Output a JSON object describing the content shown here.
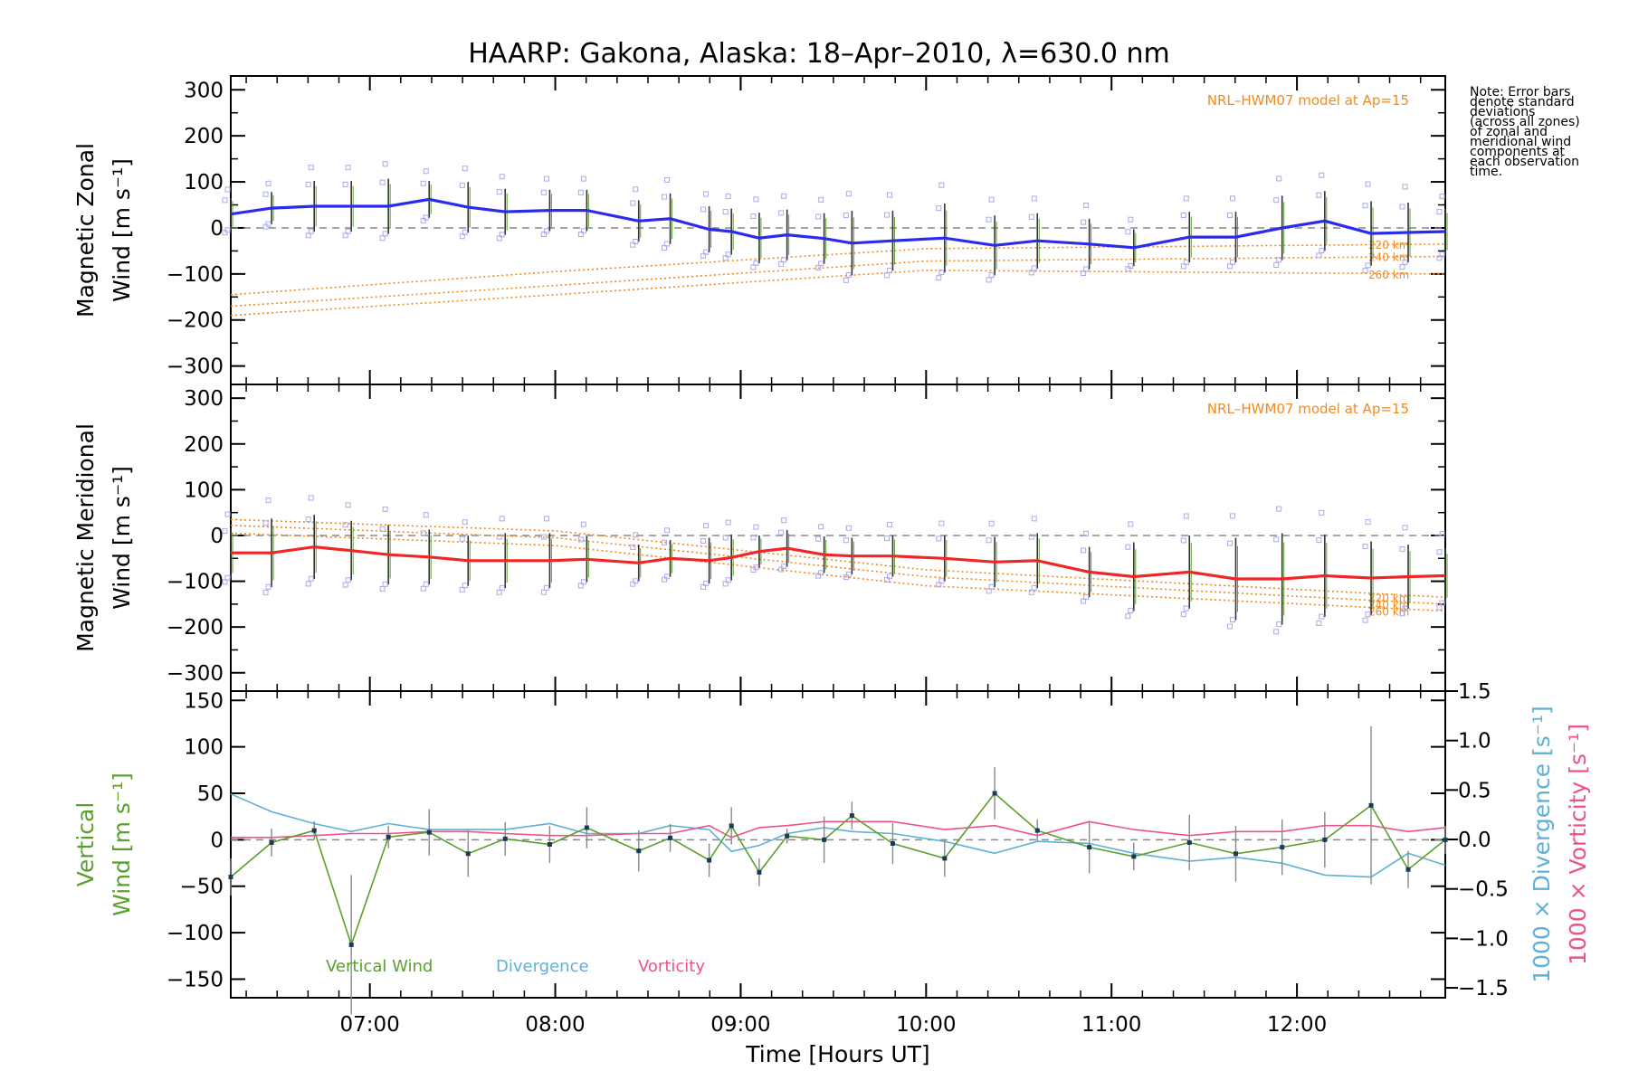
{
  "title": "HAARP: Gakona,  Alaska: 18–Apr–2010, λ=630.0 nm",
  "note": "Note: Error bars\ndenote standard\ndeviations\n(across all zones)\nof zonal and\nmeridional wind\ncomponents at\neach observation\ntime.",
  "colors": {
    "zonal": "#2b2bf0",
    "meridional": "#f02626",
    "vertical": "#5aa02c",
    "divergence": "#5fb0d6",
    "vorticity": "#f0508c",
    "model": "#f28a1e",
    "samples": "#a9aae8"
  },
  "chart_data": [
    {
      "type": "line",
      "panel": "zonal",
      "ylabel": [
        "Magnetic Zonal",
        "Wind [m s⁻¹]"
      ],
      "xlim": [
        6.25,
        12.8
      ],
      "ylim": [
        -340,
        330
      ],
      "yticks": [
        300,
        200,
        100,
        0,
        -100,
        -200,
        -300
      ],
      "annotation": "NRL–HWM07 model at Ap=15",
      "series": {
        "x": [
          6.25,
          6.47,
          6.7,
          6.9,
          7.1,
          7.32,
          7.53,
          7.73,
          7.97,
          8.17,
          8.45,
          8.62,
          8.83,
          8.95,
          9.1,
          9.25,
          9.45,
          9.6,
          9.82,
          10.1,
          10.37,
          10.6,
          10.88,
          11.12,
          11.42,
          11.67,
          11.92,
          12.15,
          12.4,
          12.6,
          12.8
        ],
        "y": [
          30,
          43,
          47,
          47,
          47,
          62,
          45,
          35,
          38,
          38,
          15,
          20,
          -3,
          -8,
          -22,
          -15,
          -23,
          -33,
          -28,
          -22,
          -38,
          -28,
          -35,
          -43,
          -20,
          -20,
          0,
          15,
          -12,
          -10,
          -8
        ],
        "err": [
          35,
          35,
          55,
          55,
          60,
          40,
          55,
          50,
          45,
          45,
          45,
          55,
          50,
          50,
          55,
          55,
          55,
          70,
          65,
          75,
          65,
          60,
          55,
          40,
          55,
          55,
          70,
          65,
          70,
          65,
          50
        ]
      },
      "model": [
        {
          "label": "220 km",
          "x": [
            6.25,
            8.0,
            10.0,
            12.8
          ],
          "y": [
            -145,
            -95,
            -45,
            -35
          ]
        },
        {
          "label": "240 km",
          "x": [
            6.25,
            8.0,
            10.0,
            12.8
          ],
          "y": [
            -170,
            -125,
            -72,
            -62
          ]
        },
        {
          "label": "260 km",
          "x": [
            6.25,
            8.0,
            10.0,
            12.8
          ],
          "y": [
            -190,
            -145,
            -92,
            -100
          ]
        }
      ]
    },
    {
      "type": "line",
      "panel": "meridional",
      "ylabel": [
        "Magnetic Meridional",
        "Wind [m s⁻¹]"
      ],
      "xlim": [
        6.25,
        12.8
      ],
      "ylim": [
        -340,
        330
      ],
      "yticks": [
        300,
        200,
        100,
        0,
        -100,
        -200,
        -300
      ],
      "annotation": "NRL–HWM07 model at Ap=15",
      "series": {
        "x": [
          6.25,
          6.47,
          6.7,
          6.9,
          7.1,
          7.32,
          7.53,
          7.73,
          7.97,
          8.17,
          8.45,
          8.62,
          8.83,
          8.95,
          9.1,
          9.25,
          9.45,
          9.6,
          9.82,
          10.1,
          10.37,
          10.6,
          10.88,
          11.12,
          11.42,
          11.67,
          11.92,
          12.15,
          12.4,
          12.6,
          12.8
        ],
        "y": [
          -38,
          -38,
          -25,
          -33,
          -42,
          -47,
          -55,
          -55,
          -55,
          -52,
          -60,
          -50,
          -55,
          -48,
          -35,
          -28,
          -42,
          -45,
          -45,
          -50,
          -58,
          -55,
          -80,
          -90,
          -80,
          -95,
          -95,
          -88,
          -93,
          -90,
          -88
        ],
        "err": [
          55,
          75,
          70,
          65,
          65,
          60,
          55,
          60,
          60,
          50,
          40,
          40,
          50,
          50,
          35,
          40,
          40,
          40,
          45,
          50,
          55,
          60,
          55,
          75,
          80,
          90,
          100,
          90,
          80,
          70,
          60
        ]
      },
      "model": [
        {
          "label": "220 km",
          "x": [
            6.25,
            8.0,
            10.0,
            12.8
          ],
          "y": [
            35,
            10,
            -75,
            -135
          ]
        },
        {
          "label": "240 km",
          "x": [
            6.25,
            8.0,
            10.0,
            12.8
          ],
          "y": [
            22,
            -5,
            -90,
            -150
          ]
        },
        {
          "label": "260 km",
          "x": [
            6.25,
            8.0,
            10.0,
            12.8
          ],
          "y": [
            5,
            -22,
            -110,
            -165
          ]
        }
      ]
    },
    {
      "type": "line",
      "panel": "vertical",
      "ylabel": [
        "Vertical",
        "Wind [m s⁻¹]"
      ],
      "y2label_divergence": "1000 × Divergence [s⁻¹]",
      "y2label_vorticity": "1000 × Vorticity [s⁻¹]",
      "xlabel": "Time [Hours UT]",
      "xlim": [
        6.25,
        12.8
      ],
      "xticks": [
        7,
        8,
        9,
        10,
        11,
        12
      ],
      "xticklabels": [
        "07:00",
        "08:00",
        "09:00",
        "10:00",
        "11:00",
        "12:00"
      ],
      "ylim": [
        -170,
        160
      ],
      "yticks": [
        150,
        100,
        50,
        0,
        -50,
        -100,
        -150
      ],
      "y2lim": [
        -1.6,
        1.5
      ],
      "y2ticks": [
        1.5,
        1.0,
        0.5,
        0.0,
        -0.5,
        -1.0,
        -1.5
      ],
      "y2ticklabels": [
        "1.5",
        "1.0",
        "0.5",
        "0.0",
        "−0.5",
        "−1.0",
        "−1.5"
      ],
      "legend": [
        "Vertical Wind",
        "Divergence",
        "Vorticity"
      ],
      "vertical": {
        "x": [
          6.25,
          6.47,
          6.7,
          6.9,
          7.1,
          7.32,
          7.53,
          7.73,
          7.97,
          8.17,
          8.45,
          8.62,
          8.83,
          8.95,
          9.1,
          9.25,
          9.45,
          9.6,
          9.82,
          10.1,
          10.37,
          10.6,
          10.88,
          11.12,
          11.42,
          11.67,
          11.92,
          12.15,
          12.4,
          12.6,
          12.8
        ],
        "y": [
          -40,
          -3,
          10,
          -113,
          3,
          8,
          -15,
          1,
          -5,
          13,
          -12,
          2,
          -22,
          15,
          -35,
          4,
          0,
          26,
          -4,
          -20,
          50,
          10,
          -8,
          -18,
          -3,
          -15,
          -8,
          0,
          37,
          -32,
          0
        ],
        "err": [
          20,
          15,
          10,
          75,
          12,
          25,
          25,
          18,
          20,
          22,
          22,
          15,
          18,
          20,
          15,
          8,
          25,
          15,
          22,
          20,
          28,
          12,
          28,
          15,
          30,
          30,
          30,
          30,
          85,
          20,
          15
        ]
      },
      "divergence": {
        "x": [
          6.25,
          6.47,
          6.7,
          6.9,
          7.1,
          7.32,
          7.53,
          7.73,
          7.97,
          8.17,
          8.45,
          8.62,
          8.83,
          8.95,
          9.1,
          9.25,
          9.45,
          9.6,
          9.82,
          10.1,
          10.37,
          10.6,
          10.88,
          11.12,
          11.42,
          11.67,
          11.92,
          12.15,
          12.4,
          12.6,
          12.8
        ],
        "y": [
          0.46,
          0.28,
          0.16,
          0.08,
          0.16,
          0.1,
          0.1,
          0.1,
          0.16,
          0.06,
          0.06,
          0.14,
          0.1,
          -0.12,
          -0.06,
          0.06,
          0.12,
          0.08,
          0.06,
          -0.02,
          -0.14,
          -0.02,
          -0.04,
          -0.14,
          -0.22,
          -0.18,
          -0.24,
          -0.36,
          -0.38,
          -0.14,
          -0.26
        ]
      },
      "vorticity": {
        "x": [
          6.25,
          6.47,
          6.7,
          6.9,
          7.1,
          7.32,
          7.53,
          7.73,
          7.97,
          8.17,
          8.45,
          8.62,
          8.83,
          8.95,
          9.1,
          9.25,
          9.45,
          9.6,
          9.82,
          10.1,
          10.37,
          10.6,
          10.88,
          11.12,
          11.42,
          11.67,
          11.92,
          12.15,
          12.4,
          12.6,
          12.8
        ],
        "y": [
          0.02,
          0.02,
          0.04,
          0.06,
          0.06,
          0.08,
          0.08,
          0.06,
          0.04,
          0.04,
          0.06,
          0.06,
          0.14,
          0.02,
          0.12,
          0.14,
          0.18,
          0.18,
          0.18,
          0.1,
          0.14,
          0.04,
          0.18,
          0.1,
          0.04,
          0.08,
          0.08,
          0.14,
          0.14,
          0.08,
          0.12
        ]
      }
    }
  ]
}
